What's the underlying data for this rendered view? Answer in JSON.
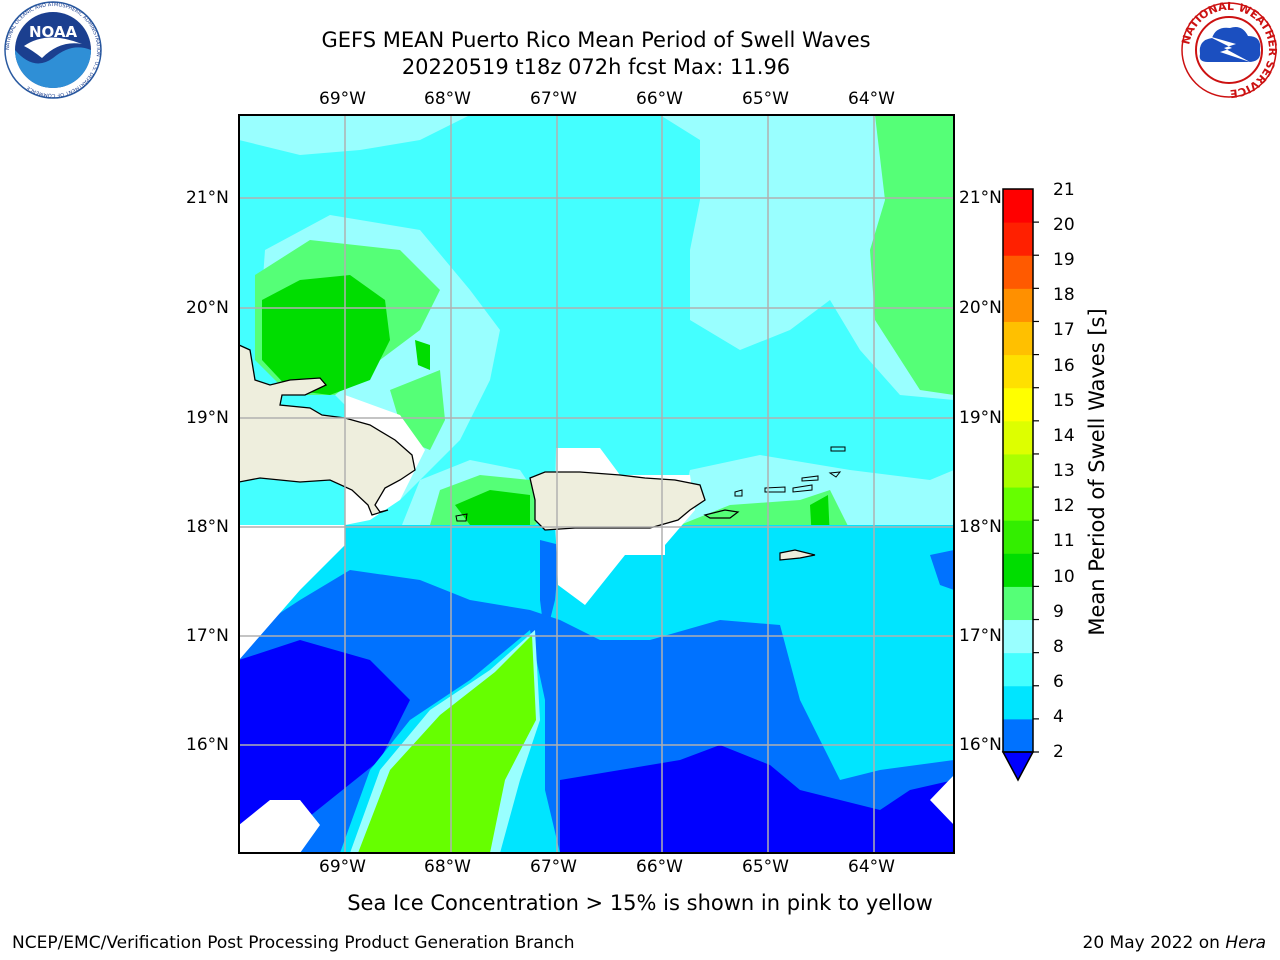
{
  "title": {
    "line1": "GEFS MEAN Puerto Rico Mean Period of Swell Waves",
    "line2": "20220519 t18z 072h fcst   Max: 11.96"
  },
  "map": {
    "lon_labels": [
      "69°W",
      "68°W",
      "67°W",
      "66°W",
      "65°W",
      "64°W"
    ],
    "lat_labels": [
      "21°N",
      "20°N",
      "19°N",
      "18°N",
      "17°N",
      "16°N"
    ],
    "lon_range": [
      -70.0,
      -63.25
    ],
    "lat_range": [
      15.0,
      21.75
    ],
    "land_color": "#eeeedd",
    "grid": true
  },
  "colorbar": {
    "title": "Mean Period of Swell Waves [s]",
    "ticks": [
      "21",
      "20",
      "19",
      "18",
      "17",
      "16",
      "15",
      "14",
      "13",
      "12",
      "11",
      "10",
      "9",
      "8",
      "6",
      "4",
      "2"
    ],
    "colors": [
      "#0000ff",
      "#0072ff",
      "#00e5ff",
      "#44ffff",
      "#99ffff",
      "#55ff77",
      "#00dd00",
      "#33ee00",
      "#66ff00",
      "#aaff00",
      "#ddff00",
      "#ffff00",
      "#ffe000",
      "#ffc000",
      "#ff9000",
      "#ff5a00",
      "#ff2000",
      "#ff0000"
    ]
  },
  "logos": {
    "left": "NOAA",
    "left_ring_text": "NATIONAL OCEANIC AND ATMOSPHERIC ADMINISTRATION · U.S. DEPARTMENT OF COMMERCE",
    "right_ring_text": "NATIONAL WEATHER SERVICE"
  },
  "footer": {
    "sea_ice": "Sea Ice Concentration > 15% is shown in pink to yellow",
    "left": "NCEP/EMC/Verification Post Processing Product Generation Branch",
    "right_date": "20 May 2022 on ",
    "right_host": "Hera"
  }
}
